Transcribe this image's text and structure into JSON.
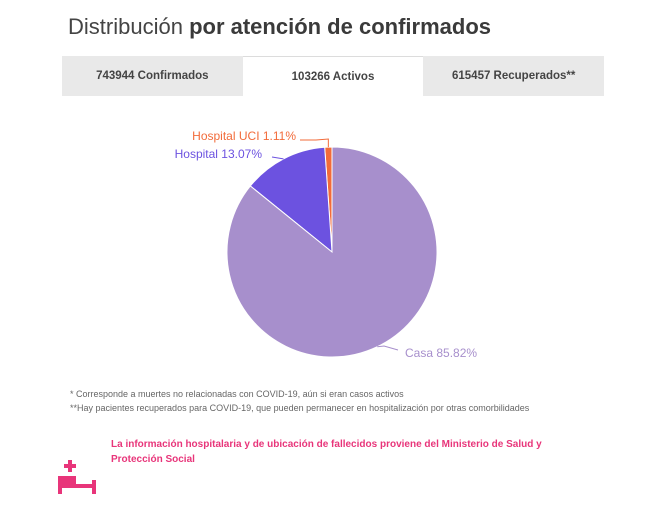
{
  "header": {
    "title_light": "Distribución",
    "title_bold": "por atención de confirmados"
  },
  "tabs": [
    {
      "label": "743944 Confirmados",
      "active": false
    },
    {
      "label": "103266 Activos",
      "active": true
    },
    {
      "label": "615457 Recuperados**",
      "active": false
    }
  ],
  "chart_data": {
    "type": "pie",
    "title": "",
    "slices": [
      {
        "label": "Hospital UCI",
        "value": 1.11,
        "display": "Hospital UCI 1.11%",
        "color": "#f26b3a"
      },
      {
        "label": "Hospital",
        "value": 13.07,
        "display": "Hospital 13.07%",
        "color": "#6c52e0"
      },
      {
        "label": "Casa",
        "value": 85.82,
        "display": "Casa 85.82%",
        "color": "#a78fcc"
      }
    ],
    "unit": "%"
  },
  "notes": {
    "note1": "* Corresponde a muertes no relacionadas con COVID-19, aún si eran casos activos",
    "note2": "**Hay pacientes recuperados para COVID-19, que pueden permanecer en hospitalización por otras comorbilidades"
  },
  "source": "La información hospitalaria y de ubicación de fallecidos proviene del Ministerio de Salud y Protección Social",
  "icons": {
    "bed": "hospital-bed-icon"
  },
  "colors": {
    "accent": "#e8357a"
  }
}
